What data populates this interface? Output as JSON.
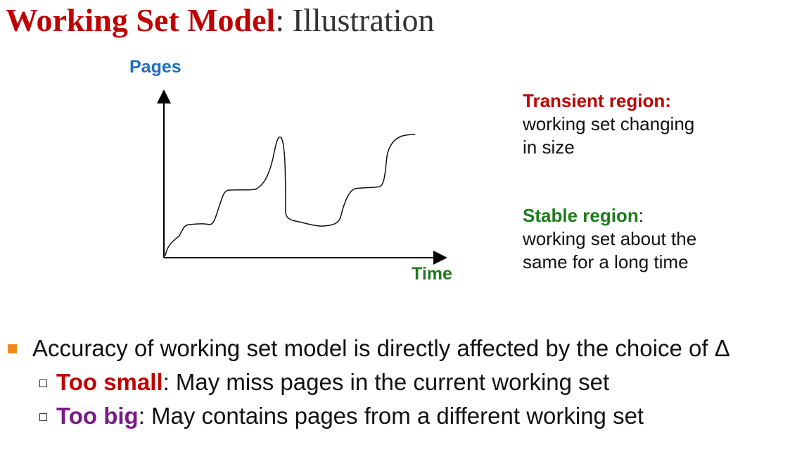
{
  "title": {
    "main": "Working Set Model",
    "separator": ":",
    "sub": "Illustration"
  },
  "graph": {
    "y_label": "Pages",
    "x_label": "Time"
  },
  "notes": {
    "transient": {
      "heading": "Transient region:",
      "lines": [
        "working set changing",
        "in size"
      ]
    },
    "stable": {
      "heading": "Stable region",
      "heading_suffix": ":",
      "lines": [
        "working set about the",
        "same for a long time"
      ]
    }
  },
  "bullets": {
    "main": "Accuracy of working set model is directly affected by the choice of Δ",
    "items": [
      {
        "term": "Too small",
        "rest": ": May miss pages in the current working set"
      },
      {
        "term": "Too big",
        "rest": ": May contains pages from a different working set"
      }
    ]
  },
  "colors": {
    "title_accent": "#c00000",
    "transient": "#c00000",
    "stable": "#1e7a1e",
    "pages_label": "#1f6fbf",
    "too_big": "#7a1a8a",
    "bullet": "#f08a1d"
  }
}
